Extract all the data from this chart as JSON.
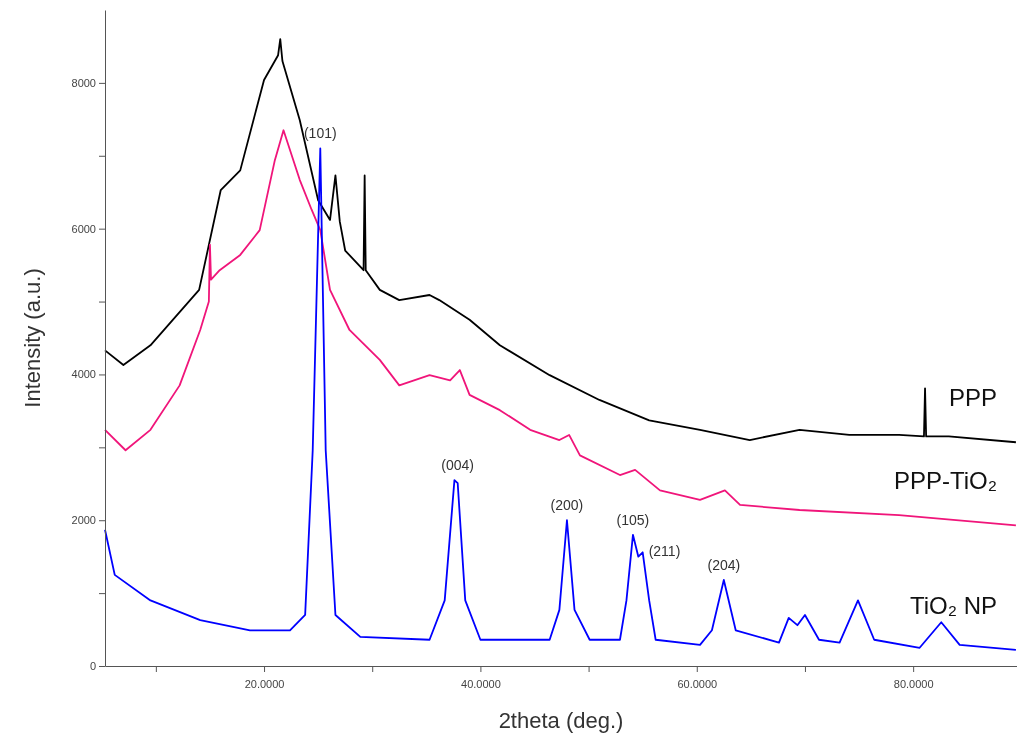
{
  "chart_data": {
    "type": "line",
    "xlabel": "2theta (deg.)",
    "ylabel": "Intensity (a.u.)",
    "xlim": [
      5.3,
      89.6
    ],
    "ylim": [
      0,
      9000
    ],
    "xticks": [
      {
        "value": 10,
        "label": null
      },
      {
        "value": 20,
        "label": "20.0000"
      },
      {
        "value": 30,
        "label": null
      },
      {
        "value": 40,
        "label": "40.0000"
      },
      {
        "value": 50,
        "label": null
      },
      {
        "value": 60,
        "label": "60.0000"
      },
      {
        "value": 70,
        "label": null
      },
      {
        "value": 80,
        "label": "80.0000"
      }
    ],
    "yticks": [
      0,
      {
        "value": 1000,
        "label": null
      },
      2000,
      {
        "value": 3000,
        "label": null
      },
      4000,
      {
        "value": 5000,
        "label": null
      },
      6000,
      {
        "value": 7000,
        "label": null
      },
      8000
    ],
    "grid": false,
    "marker": "none",
    "line_style": "solid",
    "series": [
      {
        "name": "PPP",
        "color": "#000000",
        "x": [
          5.3,
          7,
          9.5,
          14,
          16,
          17.8,
          20,
          21.3,
          21.5,
          21.7,
          23.3,
          25,
          26.1,
          26.6,
          27,
          27.5,
          29.2,
          29.3,
          29.4,
          30.7,
          32.5,
          35.3,
          36.2,
          39,
          41.8,
          46.4,
          51,
          55.6,
          60.3,
          64.9,
          69.5,
          74.1,
          78.7,
          81,
          81.1,
          81.2,
          83.3,
          89.5
        ],
        "values": [
          4330,
          4130,
          4400,
          5160,
          6530,
          6800,
          8040,
          8380,
          8600,
          8300,
          7490,
          6390,
          6120,
          6730,
          6100,
          5700,
          5430,
          6730,
          5430,
          5160,
          5020,
          5090,
          5020,
          4750,
          4400,
          3990,
          3650,
          3370,
          3240,
          3100,
          3240,
          3170,
          3170,
          3150,
          3810,
          3150,
          3150,
          3070
        ]
      },
      {
        "name": "PPP-TiO₂",
        "color": "#f0157a",
        "x": [
          5.3,
          7.2,
          9.5,
          12.2,
          14.1,
          14.9,
          15,
          15.1,
          15.9,
          17.8,
          19.6,
          21,
          21.8,
          23.3,
          24.4,
          25.2,
          26.1,
          27.9,
          30.7,
          32.5,
          35.3,
          37.2,
          38.1,
          39,
          41.8,
          44.6,
          47.3,
          48.2,
          49.2,
          52.9,
          54.3,
          56.6,
          60.3,
          62.6,
          64,
          69.5,
          78.7,
          89.5
        ],
        "values": [
          3240,
          2960,
          3240,
          3850,
          4610,
          5000,
          5780,
          5300,
          5430,
          5640,
          5980,
          6940,
          7350,
          6670,
          6260,
          5980,
          5160,
          4610,
          4200,
          3850,
          3990,
          3920,
          4060,
          3720,
          3510,
          3240,
          3100,
          3170,
          2890,
          2620,
          2690,
          2410,
          2280,
          2410,
          2210,
          2140,
          2070,
          1930
        ]
      },
      {
        "name": "TiO₂ NP",
        "color": "#0000ff",
        "x": [
          5.3,
          6.2,
          9.5,
          14.1,
          18.7,
          22.4,
          23.8,
          24.5,
          25.2,
          25.7,
          26.6,
          28.9,
          35.3,
          36.7,
          37.6,
          37.9,
          38.6,
          40,
          46.4,
          47.3,
          48,
          48.7,
          50.1,
          52.9,
          53.5,
          54.1,
          54.6,
          55,
          55.6,
          56.2,
          60.3,
          61.4,
          62.5,
          63.6,
          67.6,
          68.5,
          69.3,
          70,
          71.3,
          73.2,
          74.9,
          76.4,
          80.6,
          82.6,
          84.3,
          89.5
        ],
        "values": [
          1870,
          1250,
          900,
          630,
          490,
          490,
          700,
          2960,
          7100,
          2960,
          700,
          400,
          360,
          900,
          2550,
          2510,
          900,
          360,
          360,
          770,
          2000,
          770,
          360,
          360,
          900,
          1800,
          1500,
          1560,
          900,
          360,
          290,
          490,
          1180,
          490,
          320,
          660,
          560,
          700,
          360,
          320,
          900,
          360,
          250,
          600,
          290,
          220
        ]
      }
    ],
    "annotations": [
      {
        "text": "(101)",
        "x": 25.2,
        "y": 7100
      },
      {
        "text": "(004)",
        "x": 37.9,
        "y": 2550
      },
      {
        "text": "(200)",
        "x": 48,
        "y": 2000
      },
      {
        "text": "(105)",
        "x": 54.1,
        "y": 1800
      },
      {
        "text": "(211)",
        "x": 55,
        "y": 1560
      },
      {
        "text": "(204)",
        "x": 62.5,
        "y": 1180
      }
    ]
  }
}
